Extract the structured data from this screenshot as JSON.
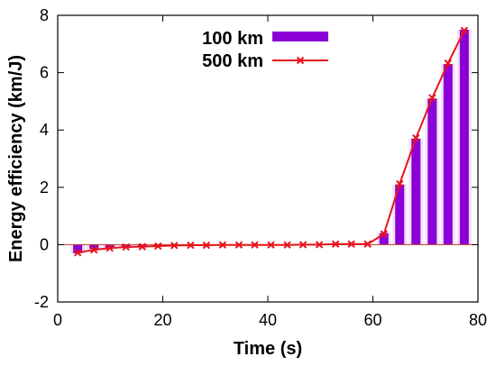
{
  "chart_data": {
    "type": "bar",
    "title": "",
    "xlabel": "Time (s)",
    "ylabel": "Energy efficiency (km/J)",
    "xlim": [
      0,
      80
    ],
    "ylim": [
      -2,
      8
    ],
    "xticks": [
      0,
      20,
      40,
      60,
      80
    ],
    "yticks": [
      -2,
      0,
      2,
      4,
      6,
      8
    ],
    "legend_position": "top-center",
    "grid": false,
    "x": [
      3.8,
      6.9,
      9.9,
      13.0,
      16.1,
      19.1,
      22.2,
      25.3,
      28.3,
      31.4,
      34.5,
      37.5,
      40.6,
      43.7,
      46.7,
      49.8,
      52.9,
      55.9,
      59.0,
      62.1,
      65.1,
      68.2,
      71.3,
      74.3,
      77.4
    ],
    "series": [
      {
        "name": "100 km",
        "kind": "bar",
        "color": "#8b00d6",
        "values": [
          -0.3,
          -0.15,
          -0.12,
          -0.1,
          -0.08,
          -0.06,
          -0.05,
          -0.04,
          -0.03,
          -0.03,
          -0.02,
          -0.02,
          -0.02,
          -0.02,
          -0.01,
          -0.01,
          0.0,
          0.0,
          0.0,
          0.4,
          2.1,
          3.7,
          5.1,
          6.3,
          7.5
        ]
      },
      {
        "name": "500 km",
        "kind": "line",
        "color": "#e8141a",
        "values": [
          -0.28,
          -0.18,
          -0.12,
          -0.08,
          -0.07,
          -0.05,
          -0.03,
          -0.02,
          -0.02,
          -0.01,
          -0.01,
          -0.01,
          -0.01,
          -0.01,
          0.0,
          0.0,
          0.02,
          0.02,
          0.02,
          0.37,
          2.12,
          3.72,
          5.12,
          6.33,
          7.47
        ]
      }
    ]
  }
}
